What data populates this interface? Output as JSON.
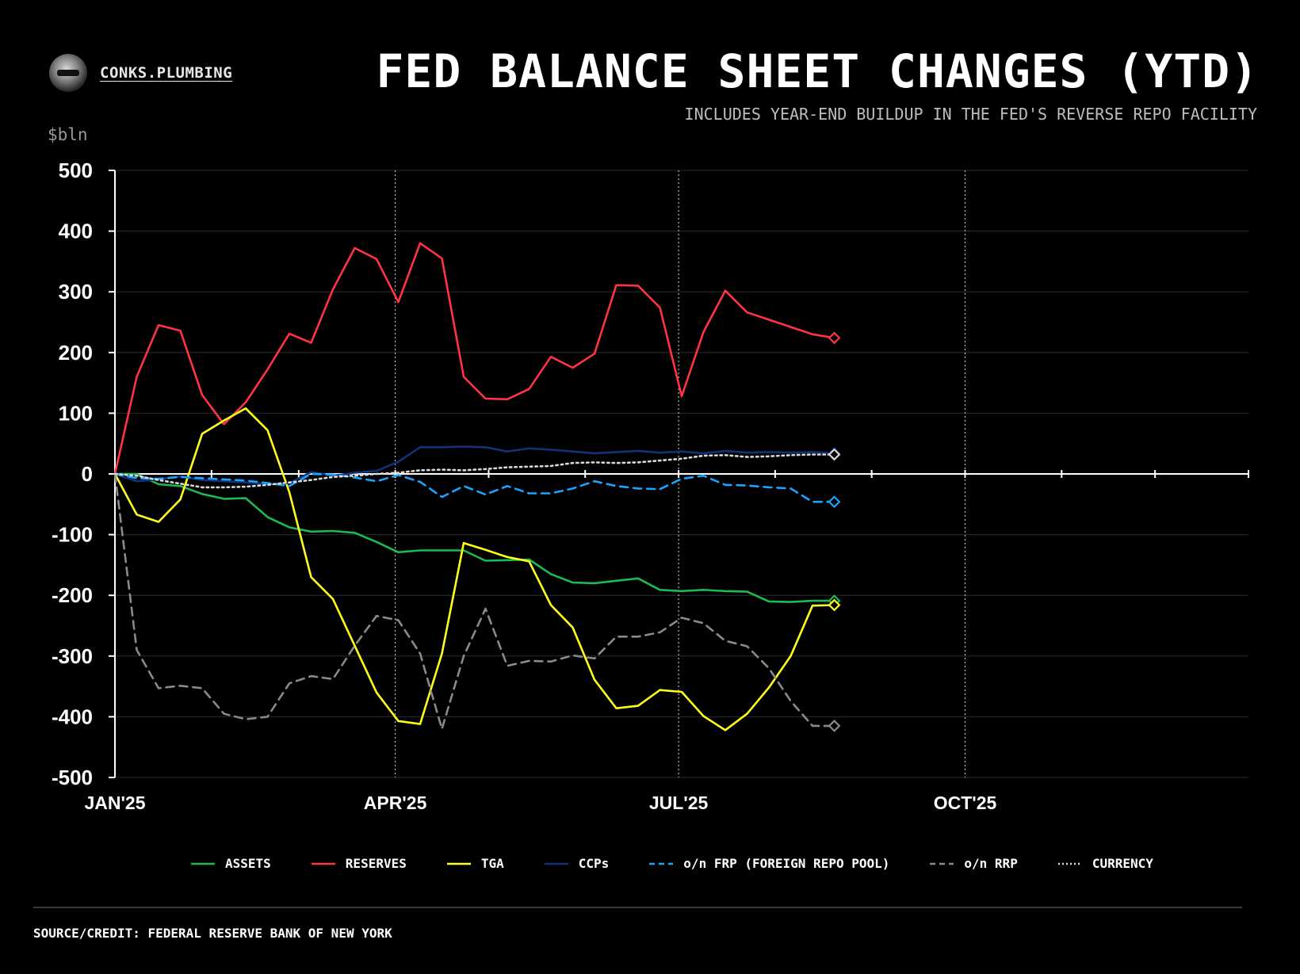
{
  "brand": {
    "name": "CONKS.PLUMBING",
    "avatar_icon": "avatar-icon"
  },
  "header": {
    "title": "FED BALANCE SHEET CHANGES (YTD)",
    "subtitle": "INCLUDES YEAR-END BUILDUP IN THE FED'S REVERSE REPO FACILITY",
    "unit": "$bln"
  },
  "footer": {
    "source": "SOURCE/CREDIT: FEDERAL RESERVE BANK OF NEW YORK"
  },
  "chart_data": {
    "type": "line",
    "title": "FED BALANCE SHEET CHANGES (YTD)",
    "subtitle": "INCLUDES YEAR-END BUILDUP IN THE FED'S REVERSE REPO FACILITY",
    "ylabel": "$bln",
    "ylim": [
      -500,
      500
    ],
    "yticks": [
      500,
      400,
      300,
      200,
      100,
      0,
      -100,
      -200,
      -300,
      -400,
      -500
    ],
    "ytick_labels": [
      "500",
      "400",
      "300",
      "200",
      "100",
      "0",
      "-100",
      "-200",
      "-300",
      "-400",
      "-500"
    ],
    "x_axis": {
      "type": "date",
      "start": "2025-01-01",
      "end": "2025-12-31"
    },
    "xticks": [
      {
        "date": "2025-01-01",
        "label": "JAN'25"
      },
      {
        "date": "2025-04-01",
        "label": "APR'25"
      },
      {
        "date": "2025-07-01",
        "label": "JUL'25"
      },
      {
        "date": "2025-10-01",
        "label": "OCT'25"
      }
    ],
    "grid": true,
    "legend_position": "bottom",
    "x": [
      "2025-01-01",
      "2025-01-08",
      "2025-01-15",
      "2025-01-22",
      "2025-01-29",
      "2025-02-05",
      "2025-02-12",
      "2025-02-19",
      "2025-02-26",
      "2025-03-05",
      "2025-03-12",
      "2025-03-19",
      "2025-03-26",
      "2025-04-02",
      "2025-04-09",
      "2025-04-16",
      "2025-04-23",
      "2025-04-30",
      "2025-05-07",
      "2025-05-14",
      "2025-05-21",
      "2025-05-28",
      "2025-06-04",
      "2025-06-11",
      "2025-06-18",
      "2025-06-25",
      "2025-07-02",
      "2025-07-09",
      "2025-07-16",
      "2025-07-23",
      "2025-07-30",
      "2025-08-06",
      "2025-08-13",
      "2025-08-20"
    ],
    "series": [
      {
        "name": "ASSETS",
        "color": "#1db954",
        "style": "solid",
        "values": [
          0,
          0,
          -17,
          -20,
          -33,
          -41,
          -40,
          -71,
          -88,
          -95,
          -94,
          -97,
          -112,
          -129,
          -126,
          -126,
          -126,
          -143,
          -142,
          -141,
          -165,
          -179,
          -180,
          -176,
          -172,
          -191,
          -193,
          -191,
          -193,
          -194,
          -210,
          -211,
          -209,
          -209
        ]
      },
      {
        "name": "RESERVES",
        "color": "#ff3344",
        "style": "solid",
        "values": [
          0,
          160,
          245,
          236,
          130,
          82,
          118,
          172,
          231,
          216,
          304,
          372,
          354,
          283,
          380,
          355,
          160,
          124,
          123,
          140,
          193,
          175,
          198,
          311,
          310,
          274,
          128,
          234,
          302,
          266,
          254,
          242,
          230,
          224
        ]
      },
      {
        "name": "TGA",
        "color": "#ffff1a",
        "style": "solid",
        "values": [
          0,
          -67,
          -79,
          -42,
          66,
          88,
          108,
          72,
          -30,
          -170,
          -206,
          -283,
          -360,
          -407,
          -412,
          -296,
          -114,
          -125,
          -137,
          -144,
          -216,
          -253,
          -339,
          -386,
          -382,
          -356,
          -359,
          -399,
          -422,
          -395,
          -352,
          -300,
          -217,
          -216
        ]
      },
      {
        "name": "CCPs",
        "color": "#15307a",
        "style": "solid",
        "values": [
          0,
          -12,
          -9,
          -4,
          -10,
          -12,
          -14,
          -17,
          -15,
          3,
          -3,
          2,
          5,
          20,
          44,
          44,
          45,
          44,
          37,
          42,
          40,
          37,
          34,
          36,
          38,
          35,
          37,
          34,
          38,
          35,
          36,
          35,
          36,
          34
        ]
      },
      {
        "name": "o/n FRP (FOREIGN REPO POOL)",
        "color": "#1aa3ff",
        "style": "dashed",
        "values": [
          0,
          -7,
          -8,
          -5,
          -7,
          -9,
          -11,
          -15,
          -20,
          0,
          -1,
          -6,
          -12,
          -2,
          -13,
          -38,
          -20,
          -34,
          -20,
          -32,
          -32,
          -24,
          -12,
          -20,
          -24,
          -25,
          -8,
          -3,
          -18,
          -19,
          -22,
          -24,
          -46,
          -46
        ]
      },
      {
        "name": "o/n RRP",
        "color": "#8a8a8a",
        "style": "dashed",
        "values": [
          0,
          -290,
          -353,
          -349,
          -353,
          -395,
          -404,
          -400,
          -345,
          -333,
          -338,
          -283,
          -234,
          -241,
          -296,
          -420,
          -300,
          -222,
          -316,
          -308,
          -309,
          -299,
          -304,
          -268,
          -268,
          -261,
          -237,
          -246,
          -275,
          -284,
          -320,
          -374,
          -415,
          -415
        ]
      },
      {
        "name": "CURRENCY",
        "color": "#d9d9d9",
        "style": "dotted",
        "values": [
          0,
          -3,
          -10,
          -16,
          -22,
          -22,
          -21,
          -18,
          -14,
          -10,
          -5,
          -3,
          0,
          2,
          6,
          7,
          6,
          8,
          11,
          12,
          13,
          18,
          19,
          18,
          19,
          22,
          25,
          30,
          31,
          28,
          29,
          31,
          32,
          32
        ]
      }
    ]
  }
}
